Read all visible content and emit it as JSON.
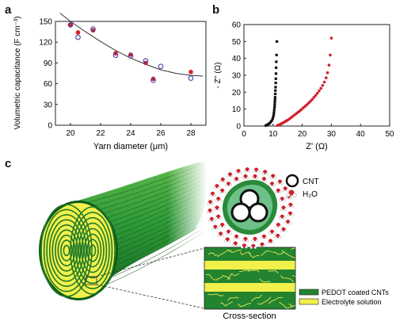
{
  "panels": {
    "a": {
      "label": "a"
    },
    "b": {
      "label": "b"
    },
    "c": {
      "label": "c"
    }
  },
  "chart_data": [
    {
      "panel": "a",
      "type": "scatter",
      "xlabel": "Yarn diameter (μm)",
      "ylabel": "Volumetric capacitance (F cm⁻³)",
      "xlim": [
        19,
        29
      ],
      "ylim": [
        0,
        150
      ],
      "xticks": [
        "20",
        "22",
        "24",
        "26",
        "28"
      ],
      "yticks": [
        "0",
        "30",
        "60",
        "90",
        "120",
        "150"
      ],
      "series": [
        {
          "marker": "filled",
          "color": "#d11f2a",
          "x": [
            20.0,
            20.5,
            21.5,
            23.0,
            24.0,
            25.0,
            25.5,
            28.0
          ],
          "y": [
            145,
            134,
            137,
            104,
            102,
            90,
            67,
            77
          ]
        },
        {
          "marker": "open",
          "color": "#4b3fa6",
          "x": [
            20.0,
            20.5,
            21.5,
            23.0,
            24.0,
            25.0,
            25.5,
            26.0,
            28.0
          ],
          "y": [
            145,
            127,
            139,
            101,
            100,
            93,
            65,
            85,
            68
          ]
        }
      ],
      "fit_curve": {
        "x": [
          19.3,
          20,
          21,
          22,
          23,
          24,
          25,
          26,
          27,
          28,
          28.8
        ],
        "y": [
          162,
          150,
          135,
          121,
          108,
          97,
          88,
          80,
          75,
          72,
          71
        ]
      }
    },
    {
      "panel": "b",
      "type": "scatter",
      "xlabel": "Z' (Ω)",
      "ylabel": "- Z'' (Ω)",
      "xlim": [
        0,
        50
      ],
      "ylim": [
        0,
        60
      ],
      "xticks": [
        "0",
        "10",
        "20",
        "30",
        "40",
        "50"
      ],
      "yticks": [
        "0",
        "10",
        "20",
        "30",
        "40",
        "50",
        "60"
      ],
      "series": [
        {
          "marker": "square",
          "color": "#111111",
          "x": [
            7.5,
            7.9,
            8.3,
            8.7,
            9.1,
            9.5,
            9.8,
            10.0,
            10.2,
            10.3,
            10.4,
            10.5,
            10.55,
            10.6,
            10.65,
            10.7,
            10.75,
            10.8,
            10.85,
            10.9,
            10.95,
            11.0,
            11.05,
            11.1,
            11.2,
            11.3
          ],
          "y": [
            0.3,
            0.6,
            1.0,
            1.5,
            2.2,
            3.0,
            4.0,
            5.2,
            6.5,
            8.0,
            9.5,
            11.0,
            12.5,
            14.0,
            15.5,
            17.0,
            19.0,
            21.0,
            23.0,
            25.5,
            28.0,
            31.0,
            34.5,
            38.0,
            42.0,
            50.0
          ]
        },
        {
          "marker": "circle",
          "color": "#d11f2a",
          "x": [
            11.5,
            12.0,
            12.5,
            13.0,
            13.5,
            14.0,
            14.5,
            15.0,
            15.6,
            16.2,
            16.8,
            17.4,
            18.0,
            18.6,
            19.2,
            19.8,
            20.4,
            21.0,
            21.6,
            22.2,
            22.8,
            23.4,
            24.0,
            24.6,
            25.2,
            25.8,
            26.4,
            27.0,
            27.6,
            28.2,
            28.7,
            29.2,
            29.6,
            30.0
          ],
          "y": [
            0.3,
            0.7,
            1.1,
            1.5,
            2.0,
            2.5,
            3.0,
            3.5,
            4.2,
            5.0,
            5.8,
            6.6,
            7.4,
            8.2,
            9.0,
            9.9,
            10.8,
            11.7,
            12.6,
            13.6,
            14.6,
            15.7,
            16.9,
            18.1,
            19.4,
            20.8,
            22.3,
            24.0,
            26.0,
            28.5,
            31.5,
            36.0,
            42.0,
            52.0
          ]
        }
      ]
    }
  ],
  "diagram": {
    "legend_cnt": "CNT",
    "legend_h2o": "H₂O",
    "legend_pedot": "PEDOT coated CNTs",
    "legend_electrolyte": "Electrolyte solution",
    "cross_section_label": "Cross-section",
    "colors": {
      "green_dark": "#1f7a2a",
      "green_mid": "#2f9a38",
      "green_light": "#58b44a",
      "yellow": "#f2f04a",
      "teal": "#4aa88a",
      "red": "#d11f2a"
    }
  }
}
